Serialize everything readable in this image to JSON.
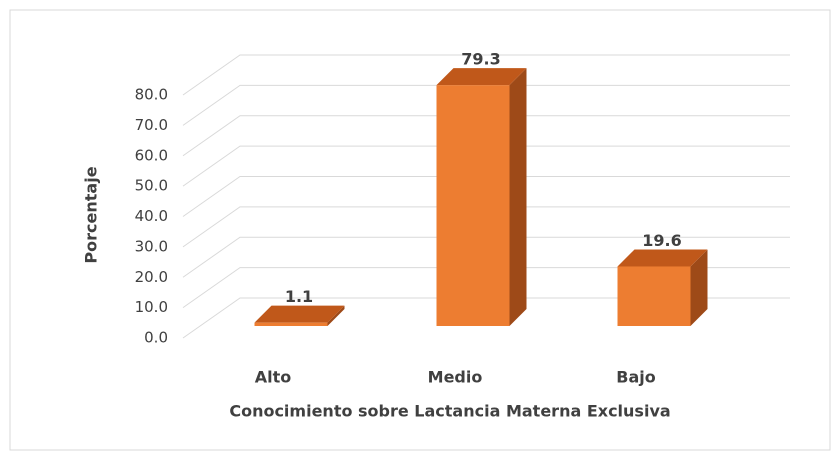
{
  "chart_data": {
    "type": "bar3d",
    "xlabel": "Conocimiento sobre Lactancia Materna Exclusiva",
    "ylabel": "Porcentaje",
    "categories": [
      "Alto",
      "Medio",
      "Bajo"
    ],
    "values": [
      1.1,
      79.3,
      19.6
    ],
    "color": "#ED7D31",
    "ylim": [
      0,
      80
    ],
    "yticks": [
      {
        "value": 0,
        "label": "0.0"
      },
      {
        "value": 10,
        "label": "10.0"
      },
      {
        "value": 20,
        "label": "20.0"
      },
      {
        "value": 30,
        "label": "30.0"
      },
      {
        "value": 40,
        "label": "40.0"
      },
      {
        "value": 50,
        "label": "50.0"
      },
      {
        "value": 60,
        "label": "60.0"
      },
      {
        "value": 70,
        "label": "70.0"
      },
      {
        "value": 80,
        "label": "80.0"
      }
    ],
    "grid": true
  }
}
